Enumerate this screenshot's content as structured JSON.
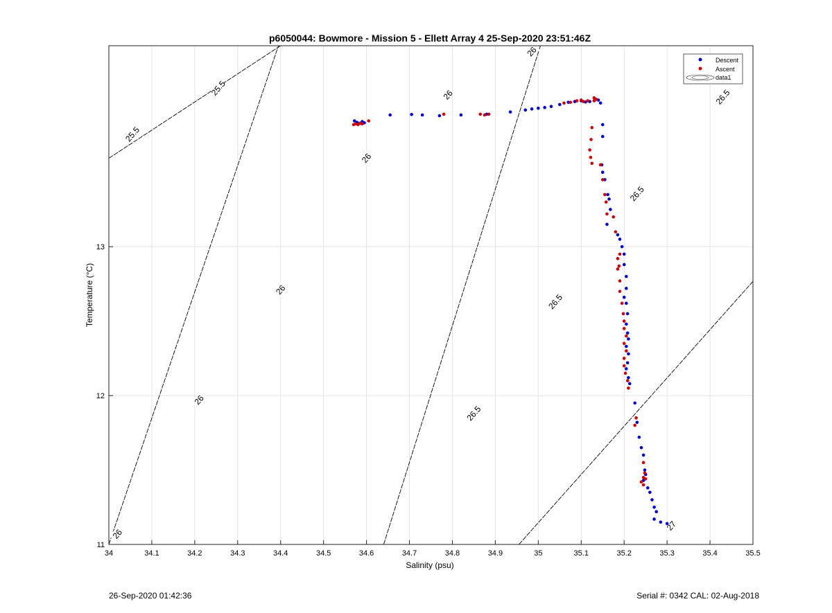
{
  "chart_data": {
    "type": "scatter",
    "title": "p6050044: Bowmore - Mission 5 - Ellett Array 4 25-Sep-2020 23:51:46Z",
    "xlabel": "Salinity (psu)",
    "ylabel": "Temperature (°C)",
    "xlim": [
      34,
      35.5
    ],
    "ylim": [
      11,
      14.35
    ],
    "x_ticks": [
      "34",
      "34.1",
      "34.2",
      "34.3",
      "34.4",
      "34.5",
      "34.6",
      "34.7",
      "34.8",
      "34.9",
      "35",
      "35.1",
      "35.2",
      "35.3",
      "35.4",
      "35.5"
    ],
    "y_ticks": [
      "11",
      "12",
      "13"
    ],
    "grid": true,
    "legend_position": "top-right",
    "legend": {
      "descent": "Descent",
      "ascent": "Ascent",
      "contour": "data1"
    },
    "contour_labels": [
      "25.5",
      "25.5",
      "26",
      "26",
      "26",
      "26",
      "26",
      "26.5",
      "26.5",
      "26.5",
      "26.5",
      "27"
    ],
    "series": [
      {
        "name": "Descent",
        "color": "#0000cc",
        "points": [
          [
            34.572,
            13.845
          ],
          [
            34.578,
            13.835
          ],
          [
            34.585,
            13.828
          ],
          [
            34.59,
            13.84
          ],
          [
            34.595,
            13.832
          ],
          [
            34.655,
            13.885
          ],
          [
            34.705,
            13.888
          ],
          [
            34.73,
            13.885
          ],
          [
            34.77,
            13.88
          ],
          [
            34.82,
            13.885
          ],
          [
            34.88,
            13.89
          ],
          [
            34.935,
            13.905
          ],
          [
            34.97,
            13.918
          ],
          [
            34.985,
            13.925
          ],
          [
            35.0,
            13.93
          ],
          [
            35.015,
            13.935
          ],
          [
            35.03,
            13.942
          ],
          [
            35.05,
            13.955
          ],
          [
            35.07,
            13.97
          ],
          [
            35.085,
            13.975
          ],
          [
            35.1,
            13.98
          ],
          [
            35.11,
            13.972
          ],
          [
            35.12,
            13.975
          ],
          [
            35.135,
            13.99
          ],
          [
            35.14,
            13.985
          ],
          [
            35.145,
            13.965
          ],
          [
            35.15,
            13.82
          ],
          [
            35.15,
            13.74
          ],
          [
            35.148,
            13.55
          ],
          [
            35.15,
            13.5
          ],
          [
            35.155,
            13.45
          ],
          [
            35.162,
            13.35
          ],
          [
            35.165,
            13.32
          ],
          [
            35.168,
            13.25
          ],
          [
            35.16,
            13.15
          ],
          [
            35.185,
            13.08
          ],
          [
            35.19,
            13.05
          ],
          [
            35.195,
            13.0
          ],
          [
            35.2,
            12.95
          ],
          [
            35.2,
            12.88
          ],
          [
            35.205,
            12.8
          ],
          [
            35.205,
            12.72
          ],
          [
            35.2,
            12.66
          ],
          [
            35.205,
            12.62
          ],
          [
            35.208,
            12.55
          ],
          [
            35.205,
            12.48
          ],
          [
            35.208,
            12.42
          ],
          [
            35.21,
            12.38
          ],
          [
            35.205,
            12.33
          ],
          [
            35.21,
            12.28
          ],
          [
            35.208,
            12.22
          ],
          [
            35.205,
            12.18
          ],
          [
            35.21,
            12.12
          ],
          [
            35.213,
            12.08
          ],
          [
            35.225,
            11.95
          ],
          [
            35.23,
            11.82
          ],
          [
            35.235,
            11.72
          ],
          [
            35.24,
            11.65
          ],
          [
            35.245,
            11.6
          ],
          [
            35.248,
            11.5
          ],
          [
            35.25,
            11.47
          ],
          [
            35.245,
            11.43
          ],
          [
            35.255,
            11.38
          ],
          [
            35.26,
            11.35
          ],
          [
            35.265,
            11.3
          ],
          [
            35.27,
            11.25
          ],
          [
            35.275,
            11.22
          ],
          [
            35.27,
            11.17
          ],
          [
            35.285,
            11.15
          ],
          [
            35.3,
            11.14
          ]
        ]
      },
      {
        "name": "Ascent",
        "color": "#cc0000",
        "points": [
          [
            34.57,
            13.82
          ],
          [
            34.575,
            13.825
          ],
          [
            34.58,
            13.82
          ],
          [
            34.585,
            13.83
          ],
          [
            34.59,
            13.825
          ],
          [
            34.605,
            13.845
          ],
          [
            34.78,
            13.89
          ],
          [
            34.865,
            13.89
          ],
          [
            34.875,
            13.885
          ],
          [
            34.885,
            13.89
          ],
          [
            35.06,
            13.965
          ],
          [
            35.075,
            13.97
          ],
          [
            35.09,
            13.98
          ],
          [
            35.1,
            13.985
          ],
          [
            35.105,
            13.975
          ],
          [
            35.115,
            13.98
          ],
          [
            35.13,
            14.0
          ],
          [
            35.135,
            13.99
          ],
          [
            35.13,
            13.98
          ],
          [
            35.125,
            13.8
          ],
          [
            35.123,
            13.72
          ],
          [
            35.12,
            13.65
          ],
          [
            35.122,
            13.6
          ],
          [
            35.125,
            13.56
          ],
          [
            35.145,
            13.55
          ],
          [
            35.15,
            13.45
          ],
          [
            35.155,
            13.35
          ],
          [
            35.158,
            13.3
          ],
          [
            35.16,
            13.22
          ],
          [
            35.175,
            13.2
          ],
          [
            35.18,
            13.1
          ],
          [
            35.19,
            12.95
          ],
          [
            35.185,
            12.92
          ],
          [
            35.188,
            12.87
          ],
          [
            35.185,
            12.85
          ],
          [
            35.19,
            12.77
          ],
          [
            35.19,
            12.7
          ],
          [
            35.195,
            12.62
          ],
          [
            35.198,
            12.55
          ],
          [
            35.2,
            12.5
          ],
          [
            35.2,
            12.45
          ],
          [
            35.205,
            12.4
          ],
          [
            35.2,
            12.35
          ],
          [
            35.205,
            12.3
          ],
          [
            35.2,
            12.25
          ],
          [
            35.2,
            12.2
          ],
          [
            35.203,
            12.15
          ],
          [
            35.208,
            12.1
          ],
          [
            35.21,
            12.05
          ],
          [
            35.228,
            11.85
          ],
          [
            35.225,
            11.8
          ],
          [
            35.245,
            11.55
          ],
          [
            35.248,
            11.48
          ],
          [
            35.245,
            11.45
          ],
          [
            35.24,
            11.42
          ],
          [
            35.25,
            11.44
          ],
          [
            35.245,
            11.4
          ]
        ]
      }
    ]
  },
  "footer": {
    "timestamp": "26-Sep-2020 01:42:36",
    "serial": "Serial #: 0342  CAL: 02-Aug-2018"
  }
}
